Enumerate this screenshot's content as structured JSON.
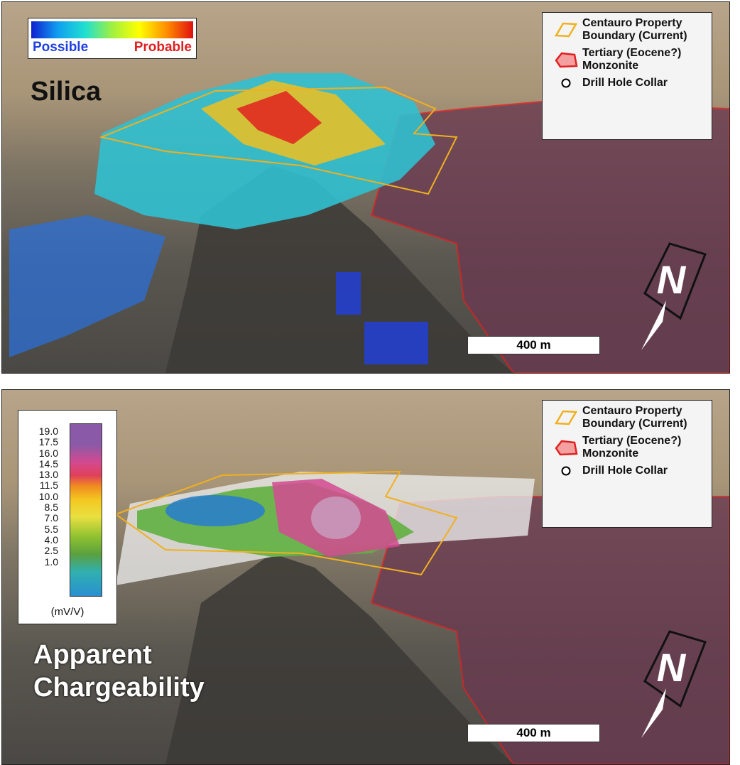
{
  "top_panel": {
    "title": "Silica",
    "colorbar": {
      "low_label": "Possible",
      "high_label": "Probable",
      "low_color": "#1020d0",
      "high_color": "#e01010"
    },
    "scale_bar": "400 m",
    "north_label": "N"
  },
  "bottom_panel": {
    "title_line1": "Apparent",
    "title_line2": "Chargeability",
    "colorbar": {
      "ticks": [
        "19.0",
        "17.5",
        "16.0",
        "14.5",
        "13.0",
        "11.5",
        "10.0",
        "8.5",
        "7.0",
        "5.5",
        "4.0",
        "2.5",
        "1.0"
      ],
      "unit": "(mV/V)"
    },
    "scale_bar": "400 m",
    "north_label": "N"
  },
  "legend": {
    "items": [
      {
        "label_line1": "Centauro Property",
        "label_line2": "Boundary (Current)",
        "color": "#f0b020"
      },
      {
        "label_line1": "Tertiary (Eocene?)",
        "label_line2": "Monzonite",
        "color": "#e02020"
      },
      {
        "label_line1": "Drill Hole Collar",
        "label_line2": "",
        "color": "#000000"
      }
    ]
  }
}
